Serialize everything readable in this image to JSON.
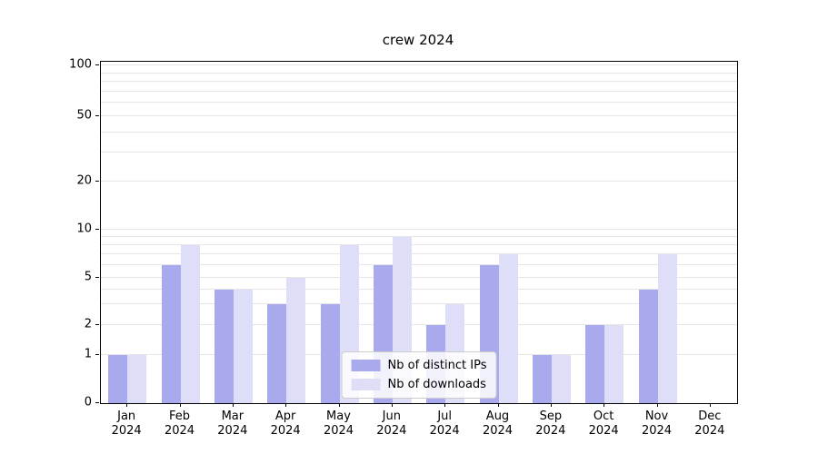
{
  "title": "crew 2024",
  "legend": {
    "items": [
      {
        "label": "Nb of distinct IPs",
        "color": "#a9a9ee"
      },
      {
        "label": "Nb of downloads",
        "color": "#dedef8"
      }
    ]
  },
  "axes": {
    "y_tick_labels": [
      "0",
      "1",
      "2",
      "5",
      "10",
      "20",
      "50",
      "100"
    ],
    "x_year": "2024",
    "x_months": [
      "Jan",
      "Feb",
      "Mar",
      "Apr",
      "May",
      "Jun",
      "Jul",
      "Aug",
      "Sep",
      "Oct",
      "Nov",
      "Dec"
    ]
  },
  "chart_data": {
    "type": "bar",
    "title": "crew 2024",
    "categories": [
      "Jan 2024",
      "Feb 2024",
      "Mar 2024",
      "Apr 2024",
      "May 2024",
      "Jun 2024",
      "Jul 2024",
      "Aug 2024",
      "Sep 2024",
      "Oct 2024",
      "Nov 2024",
      "Dec 2024"
    ],
    "series": [
      {
        "name": "Nb of distinct IPs",
        "color": "#a9a9ee",
        "values": [
          1,
          6,
          4,
          3,
          3,
          6,
          2,
          6,
          1,
          2,
          4,
          0
        ]
      },
      {
        "name": "Nb of downloads",
        "color": "#dedef8",
        "values": [
          1,
          8,
          4,
          5,
          8,
          9,
          3,
          7,
          1,
          2,
          7,
          0
        ]
      }
    ],
    "yscale": "symlog",
    "yticks": [
      0,
      1,
      2,
      5,
      10,
      20,
      50,
      100
    ],
    "gridline_values": [
      1,
      2,
      3,
      4,
      5,
      6,
      7,
      8,
      9,
      10,
      20,
      30,
      40,
      50,
      60,
      70,
      80,
      90,
      100
    ],
    "ylim": [
      0,
      110
    ],
    "grid": true,
    "legend_position": "lower center inside"
  }
}
